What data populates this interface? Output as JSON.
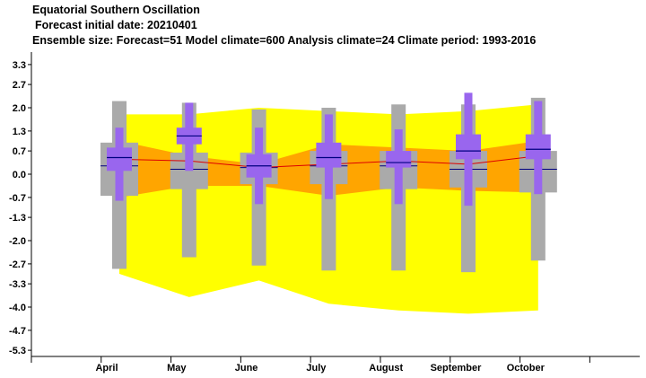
{
  "header": {
    "title": "Equatorial Southern Oscillation",
    "init_line": "Forecast initial date: 20210401",
    "ensemble_line": "Ensemble size: Forecast=51 Model climate=600 Analysis climate=24   Climate period: 1993-2016"
  },
  "chart_data": {
    "type": "box-plume",
    "categories": [
      "April",
      "May",
      "June",
      "July",
      "August",
      "September",
      "October"
    ],
    "y_ticks": [
      "3.3",
      "2.7",
      "2.0",
      "1.3",
      "0.7",
      "0.0",
      "-0.7",
      "-1.3",
      "-2.0",
      "-2.7",
      "-3.3",
      "-4.0",
      "-4.7",
      "-5.3"
    ],
    "ylim": [
      -5.6,
      3.65
    ],
    "grid": false,
    "colors": {
      "outer_band": "#ffff00",
      "inner_band": "#ffa500",
      "model_climate": "#aaaaaa",
      "forecast": "#9966ee",
      "median_line": "#dd0000",
      "median_tick": "#000080"
    },
    "analysis_climate_band": {
      "outer_upper": [
        1.8,
        1.8,
        2.0,
        1.9,
        1.8,
        1.9,
        2.1
      ],
      "outer_lower": [
        -3.0,
        -3.7,
        -3.2,
        -3.9,
        -4.1,
        -4.2,
        -4.1
      ],
      "inner_upper": [
        1.0,
        0.55,
        0.3,
        0.9,
        0.8,
        0.7,
        1.0
      ],
      "inner_lower": [
        -0.7,
        -0.35,
        -0.35,
        -0.65,
        -0.4,
        -0.5,
        -0.55
      ]
    },
    "model_climate_boxes": [
      {
        "min": -2.85,
        "p10": -0.65,
        "p25": -0.65,
        "median": 0.25,
        "p75": 0.95,
        "p90": 0.95,
        "max": 2.2
      },
      {
        "min": -2.5,
        "p10": -0.45,
        "p25": -0.45,
        "median": 0.15,
        "p75": 0.65,
        "p90": 0.65,
        "max": 2.15
      },
      {
        "min": -2.75,
        "p10": -0.3,
        "p25": -0.3,
        "median": 0.2,
        "p75": 0.65,
        "p90": 0.65,
        "max": 1.95
      },
      {
        "min": -2.9,
        "p10": -0.3,
        "p25": -0.3,
        "median": 0.25,
        "p75": 0.7,
        "p90": 0.7,
        "max": 2.0
      },
      {
        "min": -2.9,
        "p10": -0.45,
        "p25": -0.45,
        "median": 0.25,
        "p75": 0.7,
        "p90": 0.7,
        "max": 2.1
      },
      {
        "min": -2.95,
        "p10": -0.4,
        "p25": -0.4,
        "median": 0.15,
        "p75": 0.7,
        "p90": 0.7,
        "max": 2.1
      },
      {
        "min": -2.6,
        "p10": -0.55,
        "p25": -0.55,
        "median": 0.15,
        "p75": 0.7,
        "p90": 0.7,
        "max": 2.3
      }
    ],
    "forecast_boxes": [
      {
        "min": -0.8,
        "p10": 0.1,
        "p25": 0.1,
        "median": 0.5,
        "p75": 0.8,
        "p90": 0.8,
        "max": 1.4
      },
      {
        "min": 0.1,
        "p10": 0.9,
        "p25": 0.9,
        "median": 1.15,
        "p75": 1.4,
        "p90": 1.4,
        "max": 2.15
      },
      {
        "min": -0.9,
        "p10": -0.1,
        "p25": -0.1,
        "median": 0.25,
        "p75": 0.6,
        "p90": 0.6,
        "max": 1.4
      },
      {
        "min": -0.75,
        "p10": 0.2,
        "p25": 0.2,
        "median": 0.5,
        "p75": 0.95,
        "p90": 0.95,
        "max": 1.8
      },
      {
        "min": -0.9,
        "p10": 0.2,
        "p25": 0.2,
        "median": 0.35,
        "p75": 0.7,
        "p90": 0.7,
        "max": 1.35
      },
      {
        "min": -0.95,
        "p10": 0.45,
        "p25": 0.45,
        "median": 0.7,
        "p75": 1.2,
        "p90": 1.2,
        "max": 2.45
      },
      {
        "min": -0.6,
        "p10": 0.45,
        "p25": 0.45,
        "median": 0.75,
        "p75": 1.2,
        "p90": 1.2,
        "max": 2.2
      }
    ],
    "median_line": [
      0.45,
      0.4,
      0.2,
      0.3,
      0.4,
      0.3,
      0.55
    ]
  }
}
